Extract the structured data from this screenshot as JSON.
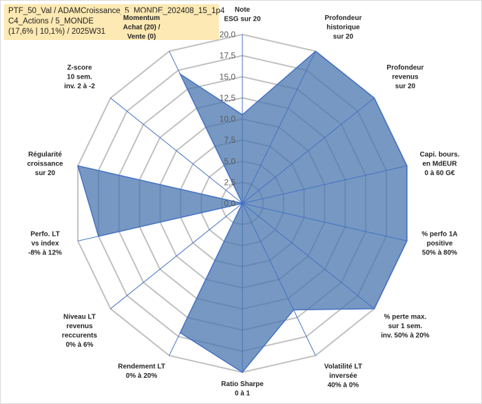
{
  "chart_data": {
    "type": "radar",
    "title_lines": [
      "PTF_50_Val / ADAMCroissance_5_MONDE_202408_15_1p4",
      "C4_Actions / 5_MONDE",
      "(17,6% | 10,1%) / 2025W31"
    ],
    "range": [
      0,
      20
    ],
    "ticks": [
      "0,0",
      "2,5",
      "5,0",
      "7,5",
      "10,0",
      "12,5",
      "15,0",
      "17,5",
      "20,0"
    ],
    "categories": [
      [
        "Note",
        "ESG sur 20"
      ],
      [
        "Profondeur",
        "historique",
        "sur 20"
      ],
      [
        "Profondeur",
        "revenus",
        "sur 20"
      ],
      [
        "Capi. bours.",
        "en MdEUR",
        "0 à 60 G€"
      ],
      [
        "% perfo 1A",
        "positive",
        "50% à 80%"
      ],
      [
        "% perte max.",
        "sur 1 sem.",
        "inv. 50% à 20%"
      ],
      [
        "Volatilité LT",
        "inversée",
        "40% à 0%"
      ],
      [
        "Ratio Sharpe",
        "0 à 1"
      ],
      [
        "Rendement LT",
        "0% à 20%"
      ],
      [
        "Niveau LT",
        "revenus",
        "reccurents",
        "0% à 6%"
      ],
      [
        "Perfo. LT",
        "vs index",
        "-8% à 12%"
      ],
      [
        "Régularité",
        "croissance",
        "sur 20"
      ],
      [
        "Z-score",
        "10 sem.",
        "inv. 2 à -2"
      ],
      [
        "Momentum",
        "Achat (20) /",
        "Vente (0)"
      ]
    ],
    "series": [
      {
        "values": [
          10.5,
          20,
          20,
          20,
          20,
          20,
          14,
          20,
          17,
          0,
          17.5,
          20,
          0,
          17
        ]
      }
    ],
    "colors": {
      "fill": "#4a76ad",
      "stroke": "#4472c4",
      "grid": "#c0c0c0",
      "highlight_label_bg": "#fde9b3"
    },
    "highlight_category_index": 13
  }
}
